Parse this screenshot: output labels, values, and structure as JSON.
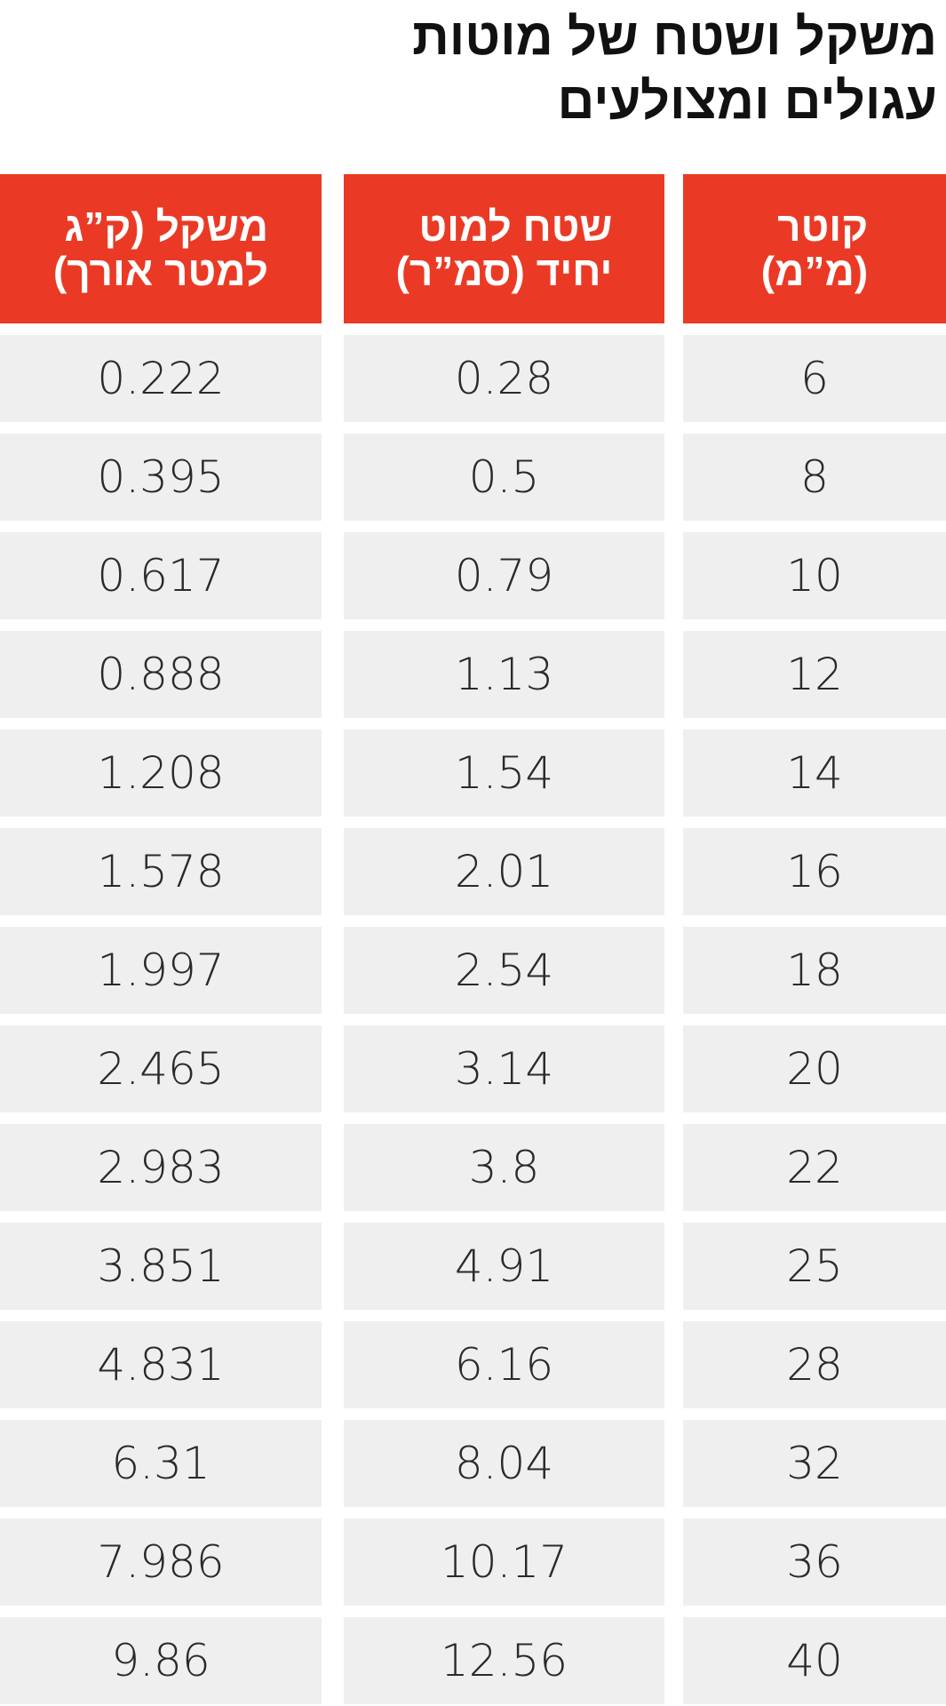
{
  "title": [
    "משקל ושטח של מוטות",
    "עגולים ומצולעים"
  ],
  "table": {
    "headers": [
      [
        "קוטר",
        "(מ”מ)"
      ],
      [
        "שטח למוט",
        "יחיד (סמ”ר)"
      ],
      [
        "משקל (ק”ג",
        "למטר אורך)"
      ]
    ],
    "rows": [
      [
        "6",
        "0.28",
        "0.222"
      ],
      [
        "8",
        "0.5",
        "0.395"
      ],
      [
        "10",
        "0.79",
        "0.617"
      ],
      [
        "12",
        "1.13",
        "0.888"
      ],
      [
        "14",
        "1.54",
        "1.208"
      ],
      [
        "16",
        "2.01",
        "1.578"
      ],
      [
        "18",
        "2.54",
        "1.997"
      ],
      [
        "20",
        "3.14",
        "2.465"
      ],
      [
        "22",
        "3.8",
        "2.983"
      ],
      [
        "25",
        "4.91",
        "3.851"
      ],
      [
        "28",
        "6.16",
        "4.831"
      ],
      [
        "32",
        "8.04",
        "6.31"
      ],
      [
        "36",
        "10.17",
        "7.986"
      ],
      [
        "40",
        "12.56",
        "9.86"
      ]
    ]
  }
}
